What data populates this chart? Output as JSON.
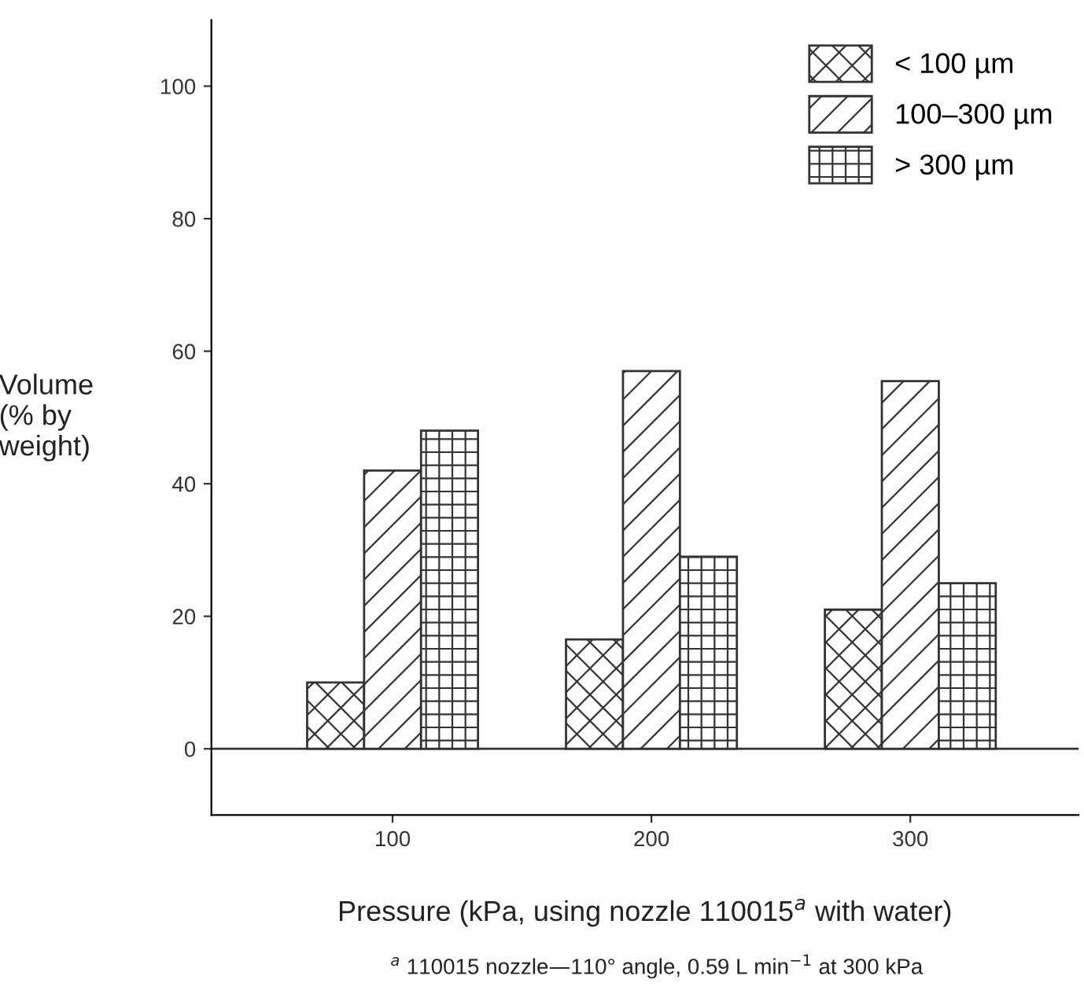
{
  "chart_data": {
    "type": "bar",
    "categories": [
      "100",
      "200",
      "300"
    ],
    "xlabel": "Pressure (kPa, using nozzle 110015$^{a}$ with water)",
    "ylabel": "Volume\n(% by\nweight)",
    "ylim": [
      -10,
      110
    ],
    "yticks": [
      0,
      20,
      40,
      60,
      80,
      100
    ],
    "series": [
      {
        "name": "< 100 µm",
        "color": "#333333",
        "values": [
          10,
          16.5,
          21
        ]
      },
      {
        "name": "100–300 µm",
        "color": "#333333",
        "values": [
          42,
          57,
          55.5
        ]
      },
      {
        "name": "> 300 µm",
        "color": "#333333",
        "values": [
          48,
          29,
          25
        ]
      }
    ],
    "ref_lines": [
      {
        "axis": "y",
        "value": 0,
        "color": "#333333"
      }
    ],
    "annotations": [
      "$^{a}$ 110015 nozzle—110° angle, 0.59 L min$^{−1}$ at 300 kPa"
    ],
    "legend": "top right"
  }
}
